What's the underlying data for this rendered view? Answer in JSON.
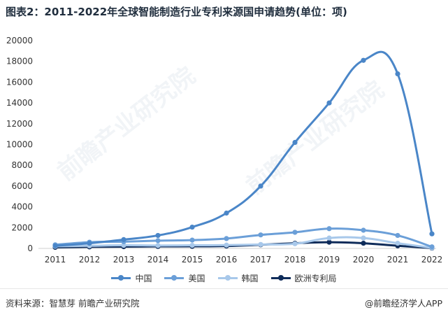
{
  "title": "图表2：2011-2022年全球智能制造行业专利来源国申请趋势(单位：项)",
  "source": "资料来源：智慧芽 前瞻产业研究院",
  "brand": "@前瞻经济学人APP",
  "watermark": "前瞻产业研究院",
  "chart_data": {
    "type": "line",
    "x": [
      "2011",
      "2012",
      "2013",
      "2014",
      "2015",
      "2016",
      "2017",
      "2018",
      "2019",
      "2020",
      "2021",
      "2022"
    ],
    "ylim": [
      0,
      20000
    ],
    "yticks": [
      0,
      2000,
      4000,
      6000,
      8000,
      10000,
      12000,
      14000,
      16000,
      18000,
      20000
    ],
    "grid": false,
    "legend_position": "bottom",
    "series": [
      {
        "name": "中国",
        "color": "#4a86c8",
        "values": [
          250,
          500,
          850,
          1250,
          2050,
          3400,
          6000,
          10200,
          14000,
          18100,
          16800,
          1400
        ]
      },
      {
        "name": "美国",
        "color": "#6b9fd8",
        "values": [
          350,
          600,
          650,
          750,
          800,
          950,
          1300,
          1550,
          1900,
          1750,
          1250,
          150
        ]
      },
      {
        "name": "韩国",
        "color": "#a8c8ea",
        "values": [
          200,
          250,
          300,
          280,
          300,
          320,
          380,
          450,
          1000,
          1000,
          500,
          50
        ]
      },
      {
        "name": "欧洲专利局",
        "color": "#0f2c5a",
        "values": [
          100,
          150,
          170,
          190,
          200,
          230,
          350,
          500,
          600,
          500,
          250,
          30
        ]
      }
    ]
  }
}
